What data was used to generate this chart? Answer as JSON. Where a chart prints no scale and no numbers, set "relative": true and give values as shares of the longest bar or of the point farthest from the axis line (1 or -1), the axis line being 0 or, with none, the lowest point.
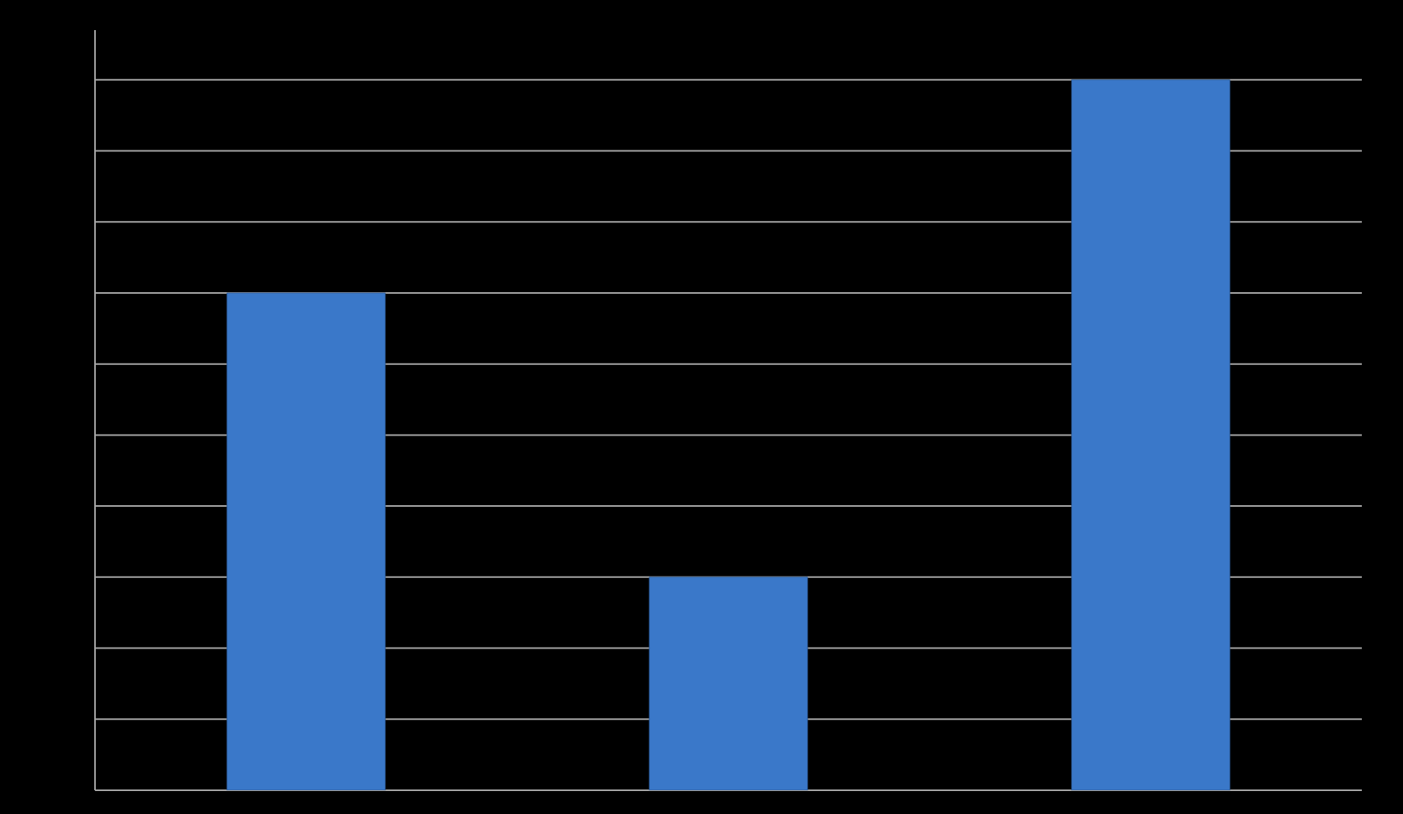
{
  "chart_data": {
    "type": "bar",
    "categories": [
      null,
      null,
      null
    ],
    "values": [
      0.7,
      0.3,
      1
    ],
    "color": "#3a78c9",
    "relative": true,
    "grid": "y"
  }
}
